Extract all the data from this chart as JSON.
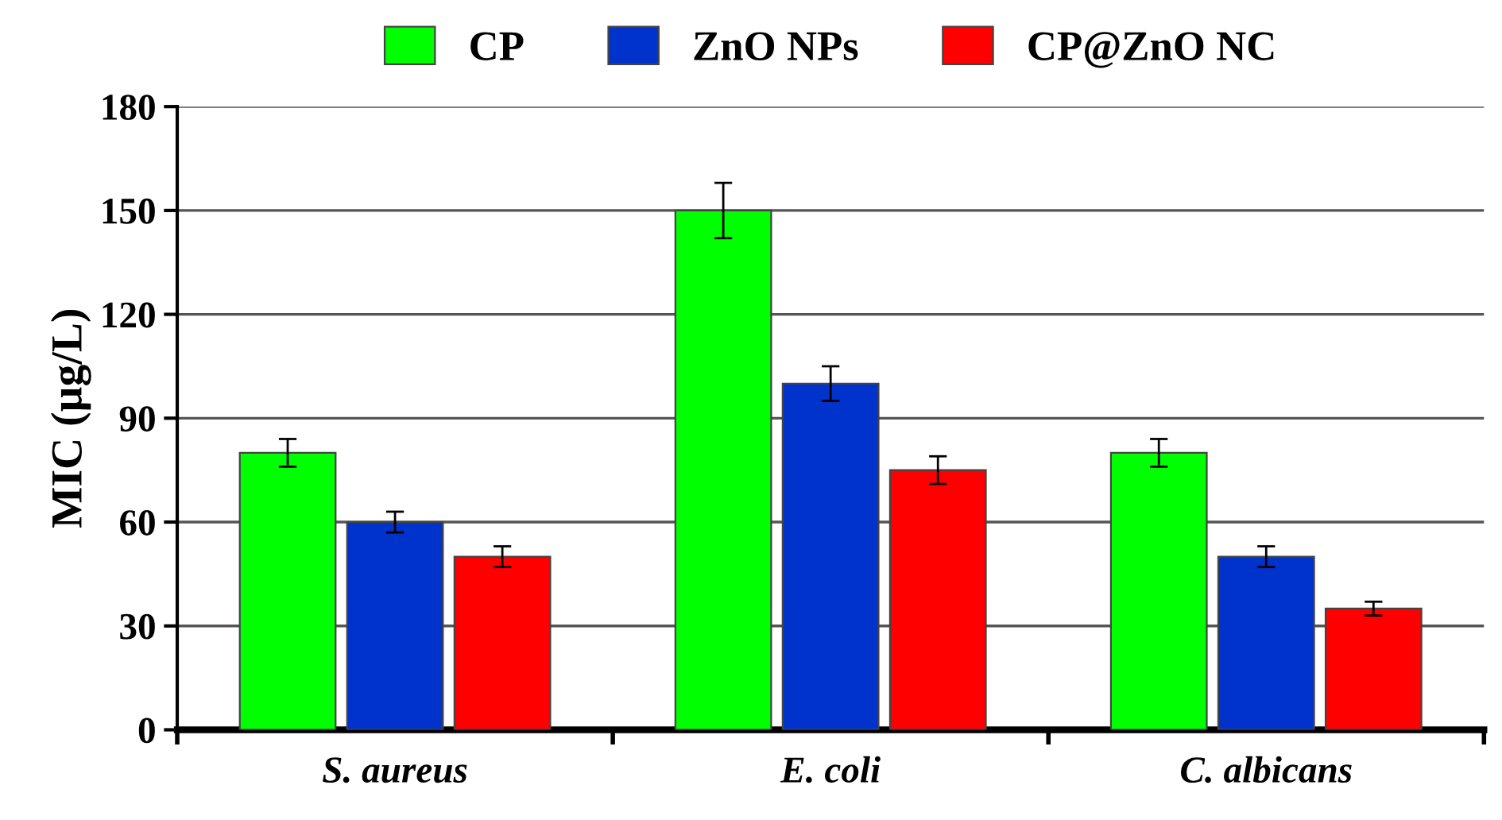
{
  "chart_data": {
    "type": "bar",
    "ylabel": "MIC (µg/L)",
    "categories": [
      "S. aureus",
      "E. coli",
      "C. albicans"
    ],
    "series": [
      {
        "name": "CP",
        "color": "#00ff00",
        "values": [
          80,
          150,
          80
        ],
        "errors": [
          4,
          8,
          4
        ]
      },
      {
        "name": "ZnO NPs",
        "color": "#0033cc",
        "values": [
          60,
          100,
          50
        ],
        "errors": [
          3,
          5,
          3
        ]
      },
      {
        "name": "CP@ZnO NC",
        "color": "#ff0000",
        "values": [
          50,
          75,
          35
        ],
        "errors": [
          3,
          4,
          2
        ]
      }
    ],
    "ylim": [
      0,
      180
    ],
    "yticks": [
      0,
      30,
      60,
      90,
      120,
      150,
      180
    ],
    "grid": "y",
    "legend": "top"
  }
}
